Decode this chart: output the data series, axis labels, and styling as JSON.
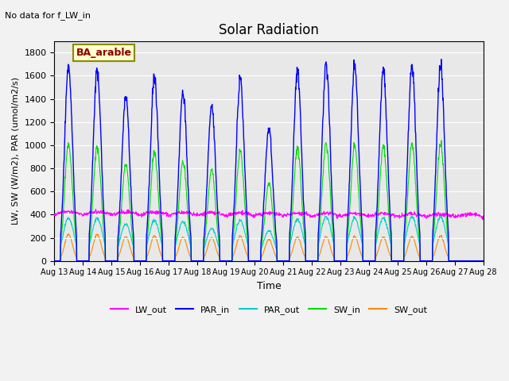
{
  "title": "Solar Radiation",
  "subtitle": "No data for f_LW_in",
  "xlabel": "Time",
  "ylabel": "LW, SW (W/m2), PAR (umol/m2/s)",
  "legend_label": "BA_arable",
  "ylim": [
    0,
    1900
  ],
  "yticks": [
    0,
    200,
    400,
    600,
    800,
    1000,
    1200,
    1400,
    1600,
    1800
  ],
  "x_tick_labels": [
    "Aug 13",
    "Aug 14",
    "Aug 15",
    "Aug 16",
    "Aug 17",
    "Aug 18",
    "Aug 19",
    "Aug 20",
    "Aug 21",
    "Aug 22",
    "Aug 23",
    "Aug 24",
    "Aug 25",
    "Aug 26",
    "Aug 27",
    "Aug 28"
  ],
  "colors": {
    "LW_out": "#ff00ff",
    "PAR_in": "#0000ff",
    "PAR_out": "#00cccc",
    "SW_in": "#00dd00",
    "SW_out": "#ff8800"
  },
  "background_color": "#e8e8e8",
  "PAR_in_peaks": [
    1680,
    1660,
    1430,
    1590,
    1460,
    1340,
    1580,
    1140,
    1650,
    1700,
    1680,
    1650,
    1680,
    1690,
    0
  ],
  "SW_in_peaks": [
    1010,
    990,
    840,
    940,
    860,
    790,
    950,
    670,
    980,
    1010,
    990,
    990,
    1010,
    1010,
    0
  ],
  "SW_out_peaks": [
    230,
    230,
    210,
    215,
    205,
    200,
    215,
    185,
    205,
    210,
    210,
    205,
    210,
    215,
    0
  ],
  "PAR_out_peaks": [
    370,
    370,
    320,
    350,
    340,
    280,
    350,
    260,
    360,
    380,
    370,
    370,
    380,
    380,
    0
  ],
  "LW_out_base": 400,
  "n_days": 15,
  "points_per_day": 96
}
